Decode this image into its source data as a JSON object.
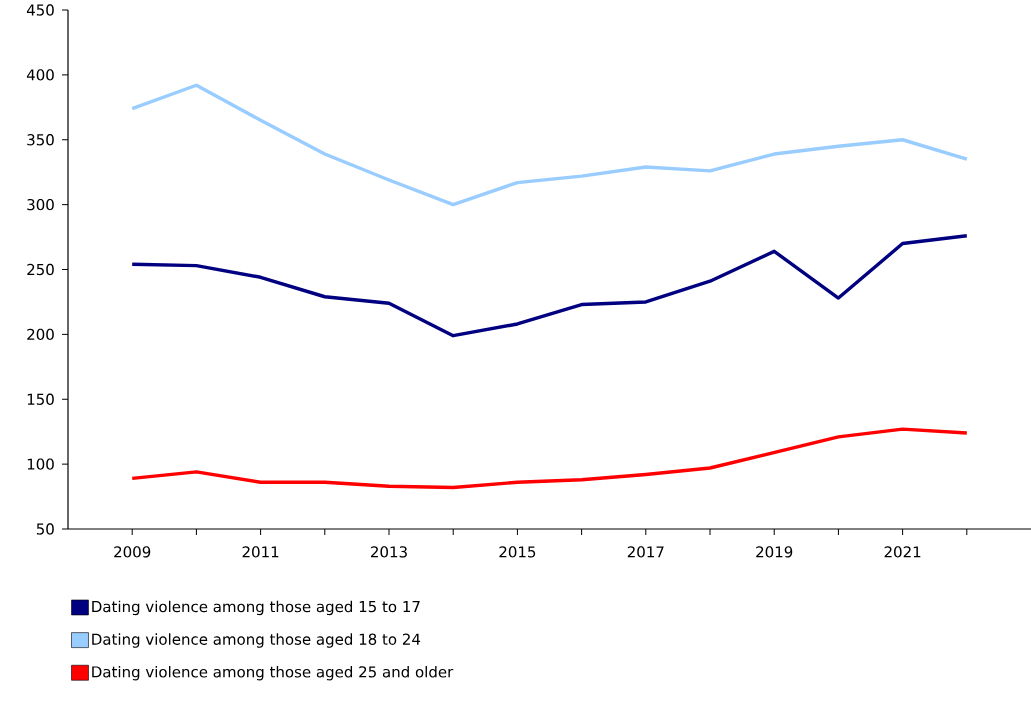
{
  "chart_data": {
    "type": "line",
    "x": [
      2009,
      2010,
      2011,
      2012,
      2013,
      2014,
      2015,
      2016,
      2017,
      2018,
      2019,
      2020,
      2021,
      2022
    ],
    "series": [
      {
        "name": "Dating violence among those aged 15 to 17",
        "color": "#000080",
        "values": [
          254,
          253,
          244,
          229,
          224,
          199,
          208,
          223,
          225,
          241,
          264,
          228,
          270,
          276
        ]
      },
      {
        "name": "Dating violence among those aged 18 to 24",
        "color": "#99ccff",
        "values": [
          374,
          392,
          365,
          339,
          319,
          300,
          317,
          322,
          329,
          326,
          339,
          345,
          350,
          335
        ]
      },
      {
        "name": "Dating violence among those aged 25 and older",
        "color": "#ff0000",
        "values": [
          89,
          94,
          86,
          86,
          83,
          82,
          86,
          88,
          92,
          97,
          109,
          121,
          127,
          124
        ]
      }
    ],
    "xlim": [
      2008,
      2023
    ],
    "xticks": [
      2009,
      {
        "value": 2010,
        "label": null
      },
      2011,
      {
        "value": 2012,
        "label": null
      },
      2013,
      {
        "value": 2014,
        "label": null
      },
      2015,
      {
        "value": 2016,
        "label": null
      },
      2017,
      {
        "value": 2018,
        "label": null
      },
      2019,
      {
        "value": 2020,
        "label": null
      },
      2021,
      {
        "value": 2022,
        "label": null
      }
    ],
    "ylim": [
      50,
      450
    ],
    "yticks": [
      50,
      100,
      150,
      200,
      250,
      300,
      350,
      400,
      450
    ],
    "grid": false,
    "legend": "bottom",
    "marker": "none",
    "line_style": "solid"
  }
}
